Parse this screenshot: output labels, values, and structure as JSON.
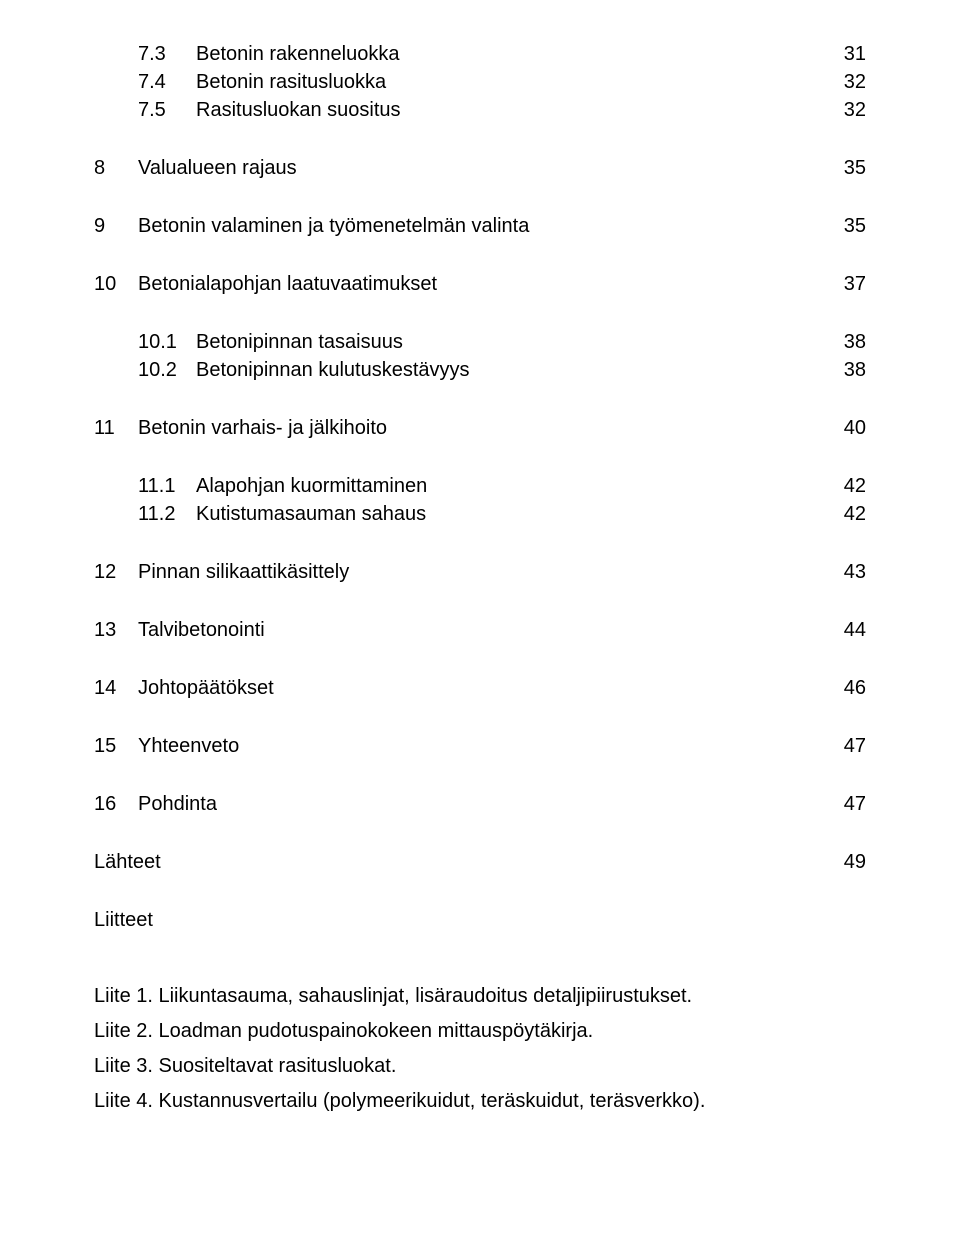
{
  "font": {
    "family": "Arial",
    "body_size_pt": 15,
    "color": "#000000"
  },
  "background_color": "#ffffff",
  "toc": [
    {
      "type": "sub",
      "num": "7.3",
      "title": "Betonin rakenneluokka",
      "page": "31"
    },
    {
      "type": "sub",
      "num": "7.4",
      "title": "Betonin rasitusluokka",
      "page": "32"
    },
    {
      "type": "sub",
      "num": "7.5",
      "title": "Rasitusluokan suositus",
      "page": "32"
    },
    {
      "type": "gap"
    },
    {
      "type": "top",
      "num": "8",
      "title": "Valualueen rajaus",
      "page": "35"
    },
    {
      "type": "gap"
    },
    {
      "type": "top",
      "num": "9",
      "title": "Betonin valaminen ja työmenetelmän valinta",
      "page": "35"
    },
    {
      "type": "gap"
    },
    {
      "type": "top",
      "num": "10",
      "title": "Betonialapohjan laatuvaatimukset",
      "page": "37"
    },
    {
      "type": "gap"
    },
    {
      "type": "sub",
      "num": "10.1",
      "title": "Betonipinnan tasaisuus",
      "page": "38"
    },
    {
      "type": "sub",
      "num": "10.2",
      "title": "Betonipinnan kulutuskestävyys",
      "page": "38"
    },
    {
      "type": "gap"
    },
    {
      "type": "top",
      "num": "11",
      "title": "Betonin varhais- ja jälkihoito",
      "page": "40"
    },
    {
      "type": "gap"
    },
    {
      "type": "sub",
      "num": "11.1",
      "title": "Alapohjan kuormittaminen",
      "page": "42"
    },
    {
      "type": "sub",
      "num": "11.2",
      "title": "Kutistumasauman sahaus",
      "page": "42"
    },
    {
      "type": "gap"
    },
    {
      "type": "top",
      "num": "12",
      "title": "Pinnan silikaattikäsittely",
      "page": "43"
    },
    {
      "type": "gap"
    },
    {
      "type": "top",
      "num": "13",
      "title": "Talvibetonointi",
      "page": "44"
    },
    {
      "type": "gap"
    },
    {
      "type": "top",
      "num": "14",
      "title": "Johtopäätökset",
      "page": "46"
    },
    {
      "type": "gap"
    },
    {
      "type": "top",
      "num": "15",
      "title": "Yhteenveto",
      "page": "47"
    },
    {
      "type": "gap"
    },
    {
      "type": "top",
      "num": "16",
      "title": "Pohdinta",
      "page": "47"
    },
    {
      "type": "gap"
    },
    {
      "type": "plain",
      "title": "Lähteet",
      "page": "49"
    },
    {
      "type": "gap"
    },
    {
      "type": "plain",
      "title": "Liitteet",
      "page": ""
    }
  ],
  "liitteet_spacer": true,
  "liitteet": [
    "Liite 1. Liikuntasauma, sahauslinjat, lisäraudoitus detaljipiirustukset.",
    "Liite 2. Loadman pudotuspainokokeen mittauspöytäkirja.",
    "Liite 3. Suositeltavat rasitusluokat.",
    "Liite 4. Kustannusvertailu (polymeerikuidut, teräskuidut, teräsverkko)."
  ]
}
